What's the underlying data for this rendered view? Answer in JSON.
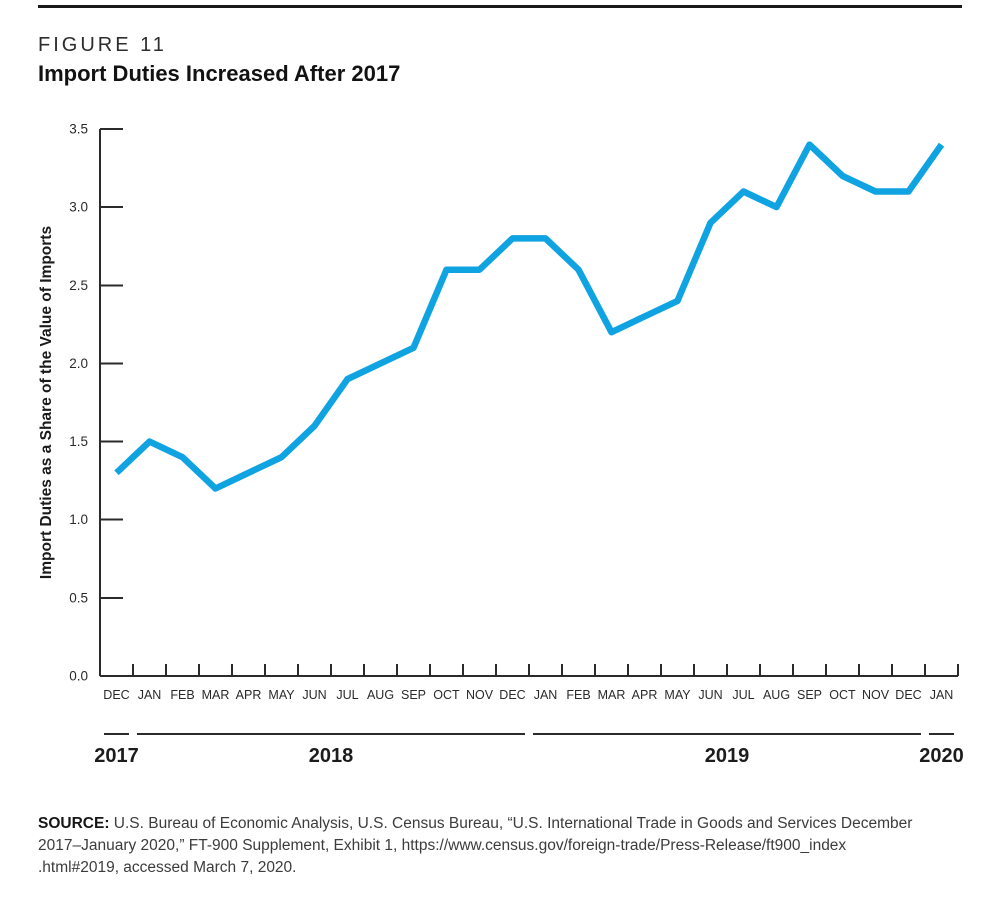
{
  "header": {
    "figure_label": "FIGURE 11",
    "title": "Import Duties Increased After 2017"
  },
  "chart_data": {
    "type": "line",
    "title": "Import Duties Increased After 2017",
    "xlabel": "",
    "ylabel": "Import Duties as a Share of the Value of Imports",
    "ylim": [
      0.0,
      3.5
    ],
    "yticks": [
      "0.0",
      "0.5",
      "1.0",
      "1.5",
      "2.0",
      "2.5",
      "3.0",
      "3.5"
    ],
    "grid": false,
    "legend": "none",
    "line_color": "#10A3E2",
    "axis_color": "#2b2b2b",
    "categories": [
      "DEC",
      "JAN",
      "FEB",
      "MAR",
      "APR",
      "MAY",
      "JUN",
      "JUL",
      "AUG",
      "SEP",
      "OCT",
      "NOV",
      "DEC",
      "JAN",
      "FEB",
      "MAR",
      "APR",
      "MAY",
      "JUN",
      "JUL",
      "AUG",
      "SEP",
      "OCT",
      "NOV",
      "DEC",
      "JAN"
    ],
    "series": [
      {
        "name": "Import Duties as a Share of the Value of Imports",
        "values": [
          1.3,
          1.5,
          1.4,
          1.2,
          1.3,
          1.4,
          1.6,
          1.9,
          2.0,
          2.1,
          2.6,
          2.6,
          2.8,
          2.8,
          2.6,
          2.2,
          2.3,
          2.4,
          2.9,
          3.1,
          3.0,
          3.4,
          3.2,
          3.1,
          3.1,
          3.4
        ]
      }
    ],
    "year_groups": [
      {
        "label": "2017",
        "start_index": 0,
        "month_count": 1
      },
      {
        "label": "2018",
        "start_index": 1,
        "month_count": 12
      },
      {
        "label": "2019",
        "start_index": 13,
        "month_count": 12
      },
      {
        "label": "2020",
        "start_index": 25,
        "month_count": 1
      }
    ]
  },
  "source": {
    "label": "SOURCE:",
    "lines": [
      "U.S. Bureau of Economic Analysis, U.S. Census Bureau, “U.S. International Trade in Goods and Services December",
      "2017–January 2020,” FT-900 Supplement, Exhibit 1, https://www.census.gov/foreign-trade/Press-Release/ft900_index",
      ".html#2019, accessed March 7, 2020."
    ]
  }
}
